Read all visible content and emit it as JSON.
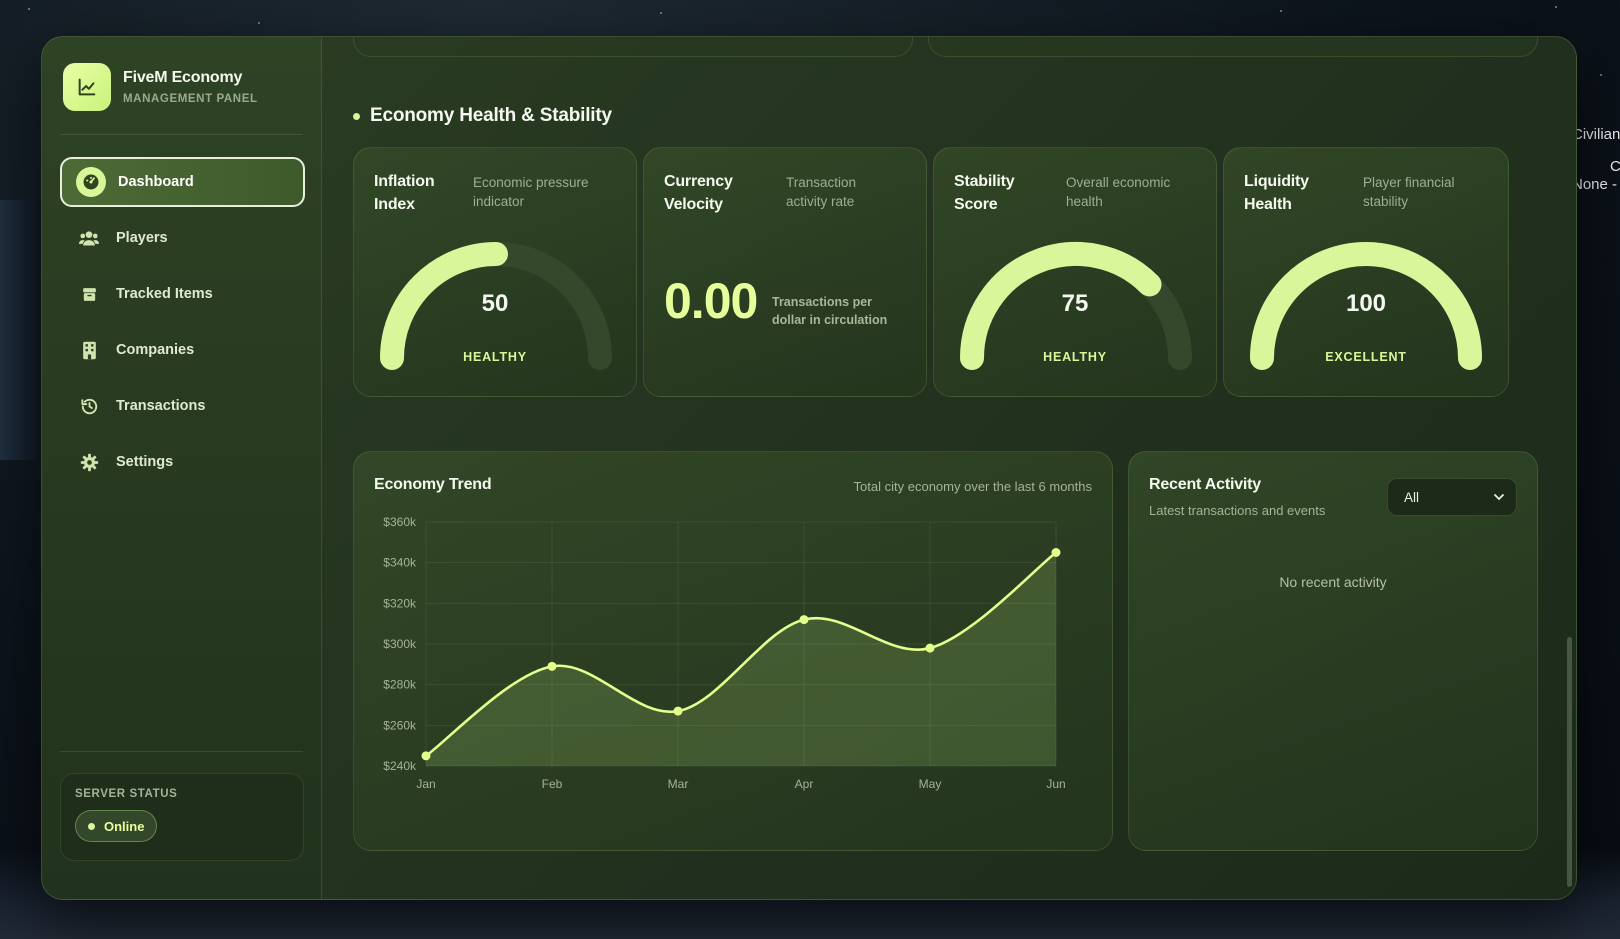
{
  "background": {
    "right_texts": [
      "Civilian",
      "C",
      "None -"
    ]
  },
  "brand": {
    "title": "FiveM Economy",
    "subtitle": "MANAGEMENT PANEL",
    "icon": "chart-line-icon"
  },
  "nav": {
    "items": [
      {
        "label": "Dashboard",
        "icon": "dashboard-gauge-icon",
        "active": true
      },
      {
        "label": "Players",
        "icon": "users-icon",
        "active": false
      },
      {
        "label": "Tracked Items",
        "icon": "box-icon",
        "active": false
      },
      {
        "label": "Companies",
        "icon": "building-icon",
        "active": false
      },
      {
        "label": "Transactions",
        "icon": "history-icon",
        "active": false
      },
      {
        "label": "Settings",
        "icon": "gear-icon",
        "active": false
      }
    ]
  },
  "server_status": {
    "title": "SERVER STATUS",
    "value": "Online"
  },
  "health": {
    "title": "Economy Health & Stability",
    "cards": [
      {
        "title_line1": "Inflation",
        "title_line2": "Index",
        "desc_line1": "Economic pressure",
        "desc_line2": "indicator",
        "value": "50",
        "level": 50,
        "label": "HEALTHY"
      },
      {
        "title_line1": "Currency",
        "title_line2": "Velocity",
        "desc_line1": "Transaction",
        "desc_line2": "activity rate",
        "value": "0.00",
        "value_desc_line1": "Transactions per",
        "value_desc_line2": "dollar in circulation"
      },
      {
        "title_line1": "Stability",
        "title_line2": "Score",
        "desc_line1": "Overall economic",
        "desc_line2": "health",
        "value": "75",
        "level": 75,
        "label": "HEALTHY"
      },
      {
        "title_line1": "Liquidity",
        "title_line2": "Health",
        "desc_line1": "Player financial",
        "desc_line2": "stability",
        "value": "100",
        "level": 100,
        "label": "EXCELLENT"
      }
    ]
  },
  "trend": {
    "title": "Economy Trend",
    "subtitle": "Total city economy over the last 6 months"
  },
  "chart_data": {
    "type": "area",
    "categories": [
      "Jan",
      "Feb",
      "Mar",
      "Apr",
      "May",
      "Jun"
    ],
    "values": [
      245,
      289,
      267,
      312,
      298,
      345
    ],
    "y_ticks": [
      "$360k",
      "$340k",
      "$320k",
      "$300k",
      "$280k",
      "$260k",
      "$240k"
    ],
    "ylim": [
      240,
      360
    ],
    "unit": "k",
    "grid": true,
    "line_color": "#e3ff8e"
  },
  "activity": {
    "title": "Recent Activity",
    "subtitle": "Latest transactions and events",
    "filter_value": "All",
    "empty_text": "No recent activity"
  },
  "colors": {
    "accent": "#d9f79a",
    "panel": "#26381f"
  }
}
